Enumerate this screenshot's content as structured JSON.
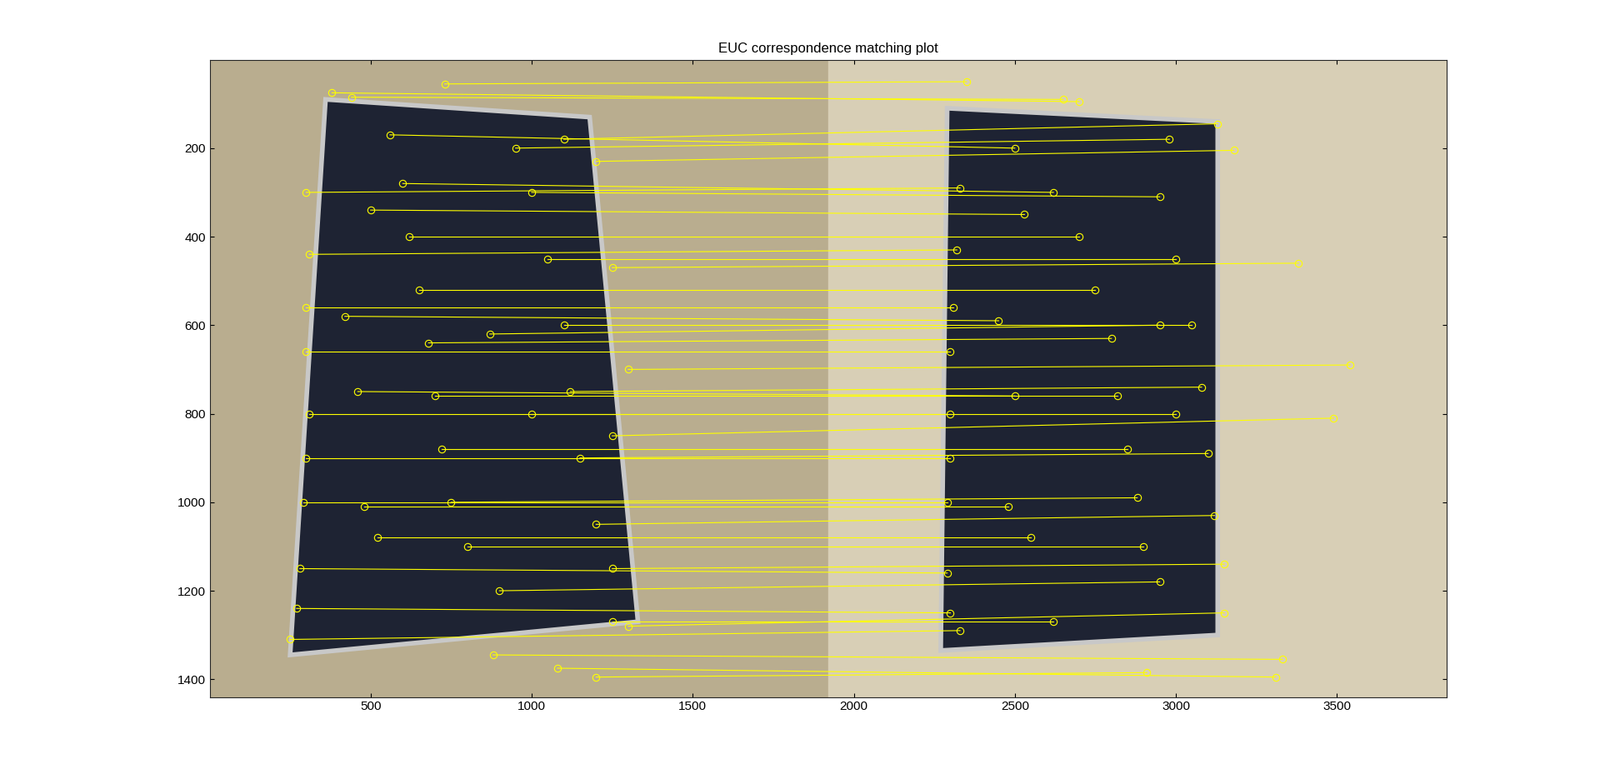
{
  "chart_data": {
    "type": "correspondence",
    "title": "EUC correspondence matching plot",
    "xlim": [
      0,
      3840
    ],
    "ylim": [
      1440,
      0
    ],
    "xticks": [
      500,
      1000,
      1500,
      2000,
      2500,
      3000,
      3500
    ],
    "yticks": [
      200,
      400,
      600,
      800,
      1000,
      1200,
      1400
    ],
    "color": "#ffff00",
    "marker": "circle",
    "line_style": "solid",
    "matches": [
      [
        380,
        75,
        2700,
        95
      ],
      [
        440,
        85,
        2650,
        90
      ],
      [
        730,
        55,
        2350,
        50
      ],
      [
        300,
        300,
        2330,
        290
      ],
      [
        310,
        440,
        2320,
        430
      ],
      [
        300,
        560,
        2310,
        560
      ],
      [
        300,
        660,
        2300,
        660
      ],
      [
        310,
        800,
        2300,
        800
      ],
      [
        300,
        900,
        2300,
        900
      ],
      [
        290,
        1000,
        2290,
        1000
      ],
      [
        280,
        1150,
        2290,
        1160
      ],
      [
        270,
        1240,
        2300,
        1250
      ],
      [
        250,
        1310,
        2330,
        1290
      ],
      [
        560,
        170,
        2500,
        200
      ],
      [
        600,
        280,
        2620,
        300
      ],
      [
        620,
        400,
        2700,
        400
      ],
      [
        650,
        520,
        2750,
        520
      ],
      [
        680,
        640,
        2800,
        630
      ],
      [
        700,
        760,
        2820,
        760
      ],
      [
        720,
        880,
        2850,
        880
      ],
      [
        750,
        1000,
        2880,
        990
      ],
      [
        800,
        1100,
        2900,
        1100
      ],
      [
        900,
        1200,
        2950,
        1180
      ],
      [
        1000,
        300,
        2950,
        310
      ],
      [
        1050,
        450,
        3000,
        450
      ],
      [
        1100,
        600,
        3050,
        600
      ],
      [
        1120,
        750,
        3080,
        740
      ],
      [
        1150,
        900,
        3100,
        890
      ],
      [
        1200,
        1050,
        3120,
        1030
      ],
      [
        1250,
        1150,
        3150,
        1140
      ],
      [
        1300,
        1280,
        3150,
        1250
      ],
      [
        950,
        200,
        2980,
        180
      ],
      [
        1100,
        180,
        3130,
        145
      ],
      [
        1200,
        230,
        3180,
        205
      ],
      [
        1250,
        1270,
        2620,
        1270
      ],
      [
        870,
        620,
        2950,
        600
      ],
      [
        1000,
        800,
        3000,
        800
      ],
      [
        480,
        1010,
        2480,
        1010
      ],
      [
        520,
        1080,
        2550,
        1080
      ],
      [
        460,
        750,
        2500,
        760
      ],
      [
        420,
        580,
        2450,
        590
      ],
      [
        500,
        340,
        2530,
        350
      ],
      [
        1200,
        1395,
        2910,
        1385
      ],
      [
        1080,
        1375,
        3310,
        1395
      ],
      [
        1300,
        700,
        3540,
        690
      ],
      [
        1250,
        850,
        3490,
        810
      ],
      [
        1250,
        470,
        3380,
        460
      ],
      [
        880,
        1345,
        3330,
        1355
      ]
    ]
  }
}
